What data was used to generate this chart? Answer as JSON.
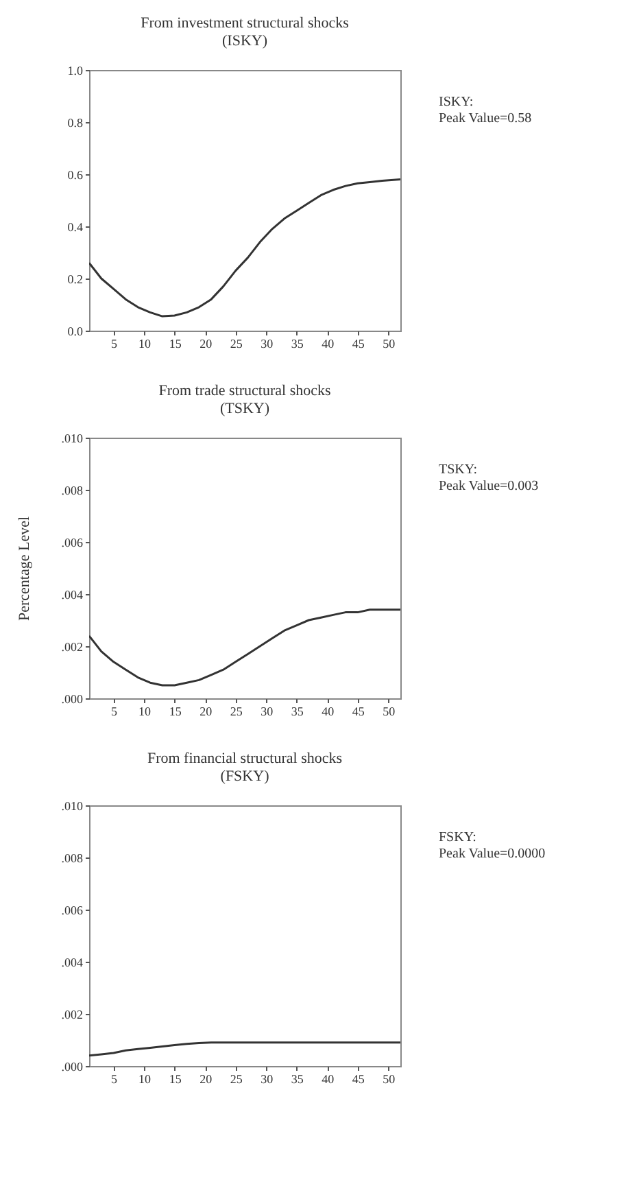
{
  "chart_data": [
    {
      "type": "line",
      "title": "From investment structural shocks\n(ISKY)",
      "annotations": [
        "ISKY:\nPeak Value=0.58"
      ],
      "x": [
        1,
        3,
        5,
        7,
        9,
        11,
        13,
        15,
        17,
        19,
        21,
        23,
        25,
        27,
        29,
        31,
        33,
        35,
        37,
        39,
        41,
        43,
        45,
        47,
        49,
        52
      ],
      "series": [
        {
          "color": "#333333",
          "values": [
            0.26,
            0.2,
            0.16,
            0.12,
            0.09,
            0.07,
            0.055,
            0.058,
            0.07,
            0.09,
            0.12,
            0.17,
            0.23,
            0.28,
            0.34,
            0.39,
            0.43,
            0.46,
            0.49,
            0.52,
            0.54,
            0.555,
            0.565,
            0.57,
            0.575,
            0.58
          ]
        }
      ],
      "xlim": [
        1,
        52
      ],
      "xticks": [
        5,
        10,
        15,
        20,
        25,
        30,
        35,
        40,
        45,
        50
      ],
      "ylim": [
        0,
        1
      ],
      "yticks": [
        {
          "value": 0,
          "label": "0.0"
        },
        0.2,
        0.4,
        0.6,
        0.8,
        {
          "value": 1,
          "label": "1.0"
        }
      ],
      "grid": false
    },
    {
      "type": "line",
      "title": "From trade structural shocks\n(TSKY)",
      "ylabel": "Percentage Level",
      "annotations": [
        "TSKY:\nPeak Value=0.003"
      ],
      "x": [
        1,
        3,
        5,
        7,
        9,
        11,
        13,
        15,
        17,
        19,
        21,
        23,
        25,
        27,
        29,
        31,
        33,
        35,
        37,
        39,
        41,
        43,
        45,
        47,
        49,
        52
      ],
      "series": [
        {
          "color": "#333333",
          "values": [
            0.0024,
            0.0018,
            0.0014,
            0.0011,
            0.0008,
            0.0006,
            0.0005,
            0.0005,
            0.0006,
            0.0007,
            0.0009,
            0.0011,
            0.0014,
            0.0017,
            0.002,
            0.0023,
            0.0026,
            0.0028,
            0.003,
            0.0031,
            0.0032,
            0.0033,
            0.0033,
            0.0034,
            0.0034,
            0.0034
          ]
        }
      ],
      "xlim": [
        1,
        52
      ],
      "xticks": [
        5,
        10,
        15,
        20,
        25,
        30,
        35,
        40,
        45,
        50
      ],
      "ylim": [
        0,
        0.01
      ],
      "yticks": [
        {
          "value": 0,
          "label": ".000"
        },
        {
          "value": 0.002,
          "label": ".002"
        },
        {
          "value": 0.004,
          "label": ".004"
        },
        {
          "value": 0.006,
          "label": ".006"
        },
        {
          "value": 0.008,
          "label": ".008"
        },
        {
          "value": 0.01,
          "label": ".010"
        }
      ],
      "grid": false
    },
    {
      "type": "line",
      "title": "From financial structural shocks\n(FSKY)",
      "annotations": [
        "FSKY:\nPeak Value=0.0000"
      ],
      "x": [
        1,
        3,
        5,
        7,
        9,
        11,
        13,
        15,
        17,
        19,
        21,
        23,
        25,
        27,
        29,
        31,
        33,
        35,
        37,
        39,
        41,
        43,
        45,
        47,
        49,
        52
      ],
      "series": [
        {
          "color": "#333333",
          "values": [
            0.0004,
            0.00045,
            0.0005,
            0.0006,
            0.00065,
            0.0007,
            0.00075,
            0.0008,
            0.00085,
            0.00088,
            0.0009,
            0.0009,
            0.0009,
            0.0009,
            0.0009,
            0.0009,
            0.0009,
            0.0009,
            0.0009,
            0.0009,
            0.0009,
            0.0009,
            0.0009,
            0.0009,
            0.0009,
            0.0009
          ]
        }
      ],
      "xlim": [
        1,
        52
      ],
      "xticks": [
        5,
        10,
        15,
        20,
        25,
        30,
        35,
        40,
        45,
        50
      ],
      "ylim": [
        0,
        0.01
      ],
      "yticks": [
        {
          "value": 0,
          "label": ".000"
        },
        {
          "value": 0.002,
          "label": ".002"
        },
        {
          "value": 0.004,
          "label": ".004"
        },
        {
          "value": 0.006,
          "label": ".006"
        },
        {
          "value": 0.008,
          "label": ".008"
        },
        {
          "value": 0.01,
          "label": ".010"
        }
      ],
      "grid": false
    }
  ]
}
